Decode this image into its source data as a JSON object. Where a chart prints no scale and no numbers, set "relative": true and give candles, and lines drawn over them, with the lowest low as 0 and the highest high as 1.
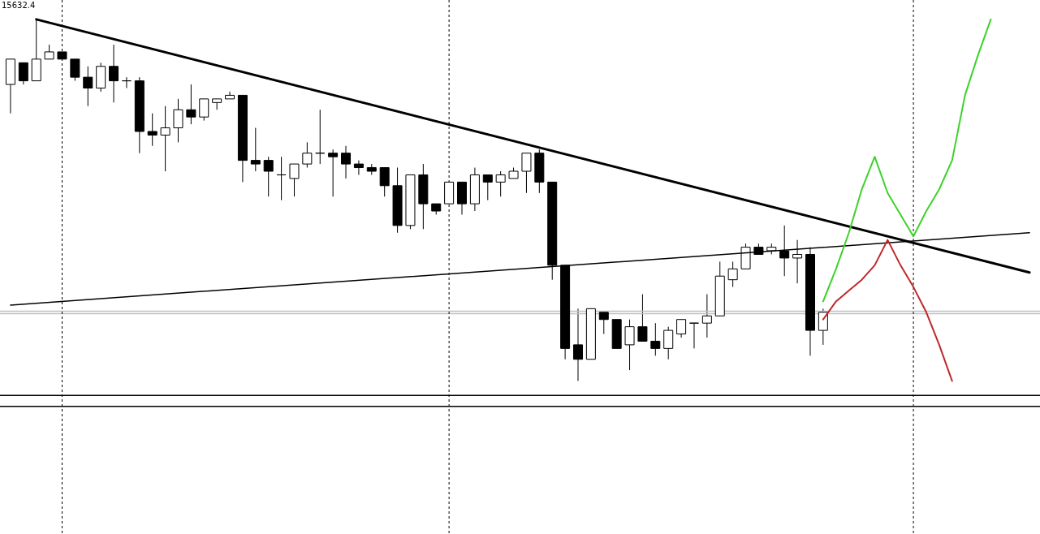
{
  "chart_data": {
    "type": "candlestick",
    "relative": true,
    "tick_labels": false,
    "grid": "x",
    "categories": [
      null,
      null,
      null,
      null,
      null,
      null,
      null,
      null,
      null,
      null,
      null,
      null,
      null,
      null,
      null,
      null,
      null,
      null,
      null,
      null,
      null,
      null,
      null,
      null,
      null,
      null,
      null,
      null,
      null,
      null,
      null,
      null,
      null,
      null,
      null,
      null,
      null,
      null,
      null,
      null,
      null,
      null,
      null,
      null,
      null,
      null,
      null,
      null,
      null,
      null,
      null,
      null,
      null,
      null,
      null,
      null,
      null,
      null,
      null,
      null,
      null,
      null,
      null,
      null,
      null,
      null,
      null,
      null,
      null,
      null,
      null,
      null,
      null,
      null,
      null,
      null,
      null,
      null,
      null,
      null
    ],
    "ohlc": [
      [
        0.82,
        0.89,
        0.74,
        0.89
      ],
      [
        0.88,
        0.88,
        0.82,
        0.83
      ],
      [
        0.83,
        1.0,
        0.83,
        0.89
      ],
      [
        0.89,
        0.93,
        0.89,
        0.91
      ],
      [
        0.91,
        0.91,
        0.89,
        0.89
      ],
      [
        0.89,
        0.89,
        0.83,
        0.84
      ],
      [
        0.84,
        0.87,
        0.76,
        0.81
      ],
      [
        0.81,
        0.88,
        0.8,
        0.87
      ],
      [
        0.87,
        0.93,
        0.77,
        0.83
      ],
      [
        0.83,
        0.84,
        0.81,
        0.83
      ],
      [
        0.83,
        0.84,
        0.63,
        0.69
      ],
      [
        0.69,
        0.74,
        0.65,
        0.68
      ],
      [
        0.68,
        0.76,
        0.58,
        0.7
      ],
      [
        0.7,
        0.78,
        0.66,
        0.75
      ],
      [
        0.75,
        0.82,
        0.71,
        0.73
      ],
      [
        0.73,
        0.78,
        0.72,
        0.78
      ],
      [
        0.77,
        0.78,
        0.75,
        0.78
      ],
      [
        0.78,
        0.8,
        0.78,
        0.79
      ],
      [
        0.79,
        0.79,
        0.55,
        0.61
      ],
      [
        0.61,
        0.7,
        0.58,
        0.6
      ],
      [
        0.61,
        0.62,
        0.51,
        0.58
      ],
      [
        0.57,
        0.62,
        0.5,
        0.57
      ],
      [
        0.56,
        0.6,
        0.51,
        0.6
      ],
      [
        0.6,
        0.66,
        0.59,
        0.63
      ],
      [
        0.63,
        0.75,
        0.6,
        0.63
      ],
      [
        0.63,
        0.64,
        0.51,
        0.62
      ],
      [
        0.63,
        0.65,
        0.56,
        0.6
      ],
      [
        0.6,
        0.61,
        0.57,
        0.59
      ],
      [
        0.59,
        0.6,
        0.57,
        0.58
      ],
      [
        0.59,
        0.59,
        0.51,
        0.54
      ],
      [
        0.54,
        0.59,
        0.41,
        0.43
      ],
      [
        0.43,
        0.57,
        0.42,
        0.57
      ],
      [
        0.57,
        0.6,
        0.42,
        0.49
      ],
      [
        0.49,
        0.49,
        0.46,
        0.47
      ],
      [
        0.49,
        0.55,
        0.49,
        0.55
      ],
      [
        0.55,
        0.55,
        0.46,
        0.49
      ],
      [
        0.49,
        0.59,
        0.47,
        0.57
      ],
      [
        0.57,
        0.57,
        0.5,
        0.55
      ],
      [
        0.55,
        0.58,
        0.51,
        0.57
      ],
      [
        0.56,
        0.59,
        0.56,
        0.58
      ],
      [
        0.58,
        0.63,
        0.52,
        0.63
      ],
      [
        0.63,
        0.64,
        0.52,
        0.55
      ],
      [
        0.55,
        0.55,
        0.28,
        0.32
      ],
      [
        0.32,
        0.32,
        0.06,
        0.09
      ],
      [
        0.1,
        0.2,
        0.0,
        0.06
      ],
      [
        0.06,
        0.2,
        0.06,
        0.2
      ],
      [
        0.19,
        0.19,
        0.13,
        0.17
      ],
      [
        0.17,
        0.17,
        0.09,
        0.09
      ],
      [
        0.1,
        0.17,
        0.03,
        0.15
      ],
      [
        0.15,
        0.24,
        0.11,
        0.11
      ],
      [
        0.11,
        0.16,
        0.07,
        0.09
      ],
      [
        0.09,
        0.15,
        0.06,
        0.14
      ],
      [
        0.13,
        0.17,
        0.12,
        0.17
      ],
      [
        0.16,
        0.16,
        0.09,
        0.16
      ],
      [
        0.16,
        0.24,
        0.12,
        0.18
      ],
      [
        0.18,
        0.33,
        0.18,
        0.29
      ],
      [
        0.28,
        0.33,
        0.26,
        0.31
      ],
      [
        0.31,
        0.38,
        0.31,
        0.37
      ],
      [
        0.37,
        0.38,
        0.35,
        0.35
      ],
      [
        0.36,
        0.38,
        0.35,
        0.37
      ],
      [
        0.36,
        0.43,
        0.29,
        0.34
      ],
      [
        0.34,
        0.39,
        0.27,
        0.35
      ],
      [
        0.35,
        0.37,
        0.07,
        0.14
      ],
      [
        0.14,
        0.2,
        0.1,
        0.19
      ],
      null,
      null,
      null,
      null,
      null,
      null,
      null,
      null,
      null,
      null,
      null,
      null,
      null,
      null,
      null,
      null
    ],
    "colors": [
      "#ffffff",
      "#000000",
      "#ffffff",
      "#ffffff",
      "#000000",
      "#000000",
      "#000000",
      "#ffffff",
      "#000000",
      "#000000",
      "#000000",
      "#000000",
      "#ffffff",
      "#ffffff",
      "#000000",
      "#ffffff",
      "#ffffff",
      "#ffffff",
      "#000000",
      "#000000",
      "#000000",
      "#000000",
      "#ffffff",
      "#ffffff",
      "#000000",
      "#000000",
      "#000000",
      "#000000",
      "#000000",
      "#000000",
      "#000000",
      "#ffffff",
      "#000000",
      "#000000",
      "#ffffff",
      "#000000",
      "#ffffff",
      "#000000",
      "#ffffff",
      "#ffffff",
      "#ffffff",
      "#000000",
      "#000000",
      "#000000",
      "#000000",
      "#ffffff",
      "#000000",
      "#000000",
      "#ffffff",
      "#000000",
      "#000000",
      "#ffffff",
      "#ffffff",
      "#000000",
      "#ffffff",
      "#ffffff",
      "#ffffff",
      "#ffffff",
      "#000000",
      "#ffffff",
      "#000000",
      "#ffffff",
      "#000000",
      "#ffffff",
      null,
      null,
      null,
      null,
      null,
      null,
      null,
      null,
      null,
      null,
      null,
      null,
      null,
      null,
      null,
      null
    ],
    "series": [
      {
        "type": "line",
        "color": "#000000",
        "values": [
          null,
          null,
          1.0,
          null,
          null,
          null,
          null,
          null,
          null,
          null,
          null,
          null,
          null,
          null,
          null,
          null,
          null,
          null,
          null,
          null,
          null,
          null,
          null,
          null,
          null,
          null,
          null,
          null,
          null,
          null,
          null,
          null,
          null,
          null,
          null,
          null,
          null,
          null,
          null,
          null,
          null,
          null,
          null,
          null,
          null,
          null,
          null,
          null,
          null,
          null,
          null,
          null,
          null,
          null,
          null,
          null,
          null,
          null,
          null,
          null,
          null,
          null,
          null,
          null,
          null,
          null,
          null,
          null,
          null,
          null,
          null,
          null,
          null,
          null,
          null,
          null,
          null,
          null,
          null,
          0.3
        ]
      },
      {
        "type": "line",
        "color": "#000000",
        "values": [
          0.21,
          null,
          null,
          null,
          null,
          null,
          null,
          null,
          null,
          null,
          null,
          null,
          null,
          null,
          null,
          null,
          null,
          null,
          null,
          null,
          null,
          null,
          null,
          null,
          null,
          null,
          null,
          null,
          null,
          null,
          null,
          null,
          null,
          null,
          null,
          null,
          null,
          null,
          null,
          null,
          null,
          null,
          null,
          null,
          null,
          null,
          null,
          null,
          null,
          null,
          null,
          null,
          null,
          null,
          null,
          null,
          null,
          null,
          null,
          null,
          null,
          null,
          null,
          null,
          null,
          null,
          null,
          null,
          null,
          null,
          null,
          null,
          null,
          null,
          null,
          null,
          null,
          null,
          null,
          0.41
        ]
      },
      {
        "type": "line",
        "color": "#3cd22a",
        "values": [
          null,
          null,
          null,
          null,
          null,
          null,
          null,
          null,
          null,
          null,
          null,
          null,
          null,
          null,
          null,
          null,
          null,
          null,
          null,
          null,
          null,
          null,
          null,
          null,
          null,
          null,
          null,
          null,
          null,
          null,
          null,
          null,
          null,
          null,
          null,
          null,
          null,
          null,
          null,
          null,
          null,
          null,
          null,
          null,
          null,
          null,
          null,
          null,
          null,
          null,
          null,
          null,
          null,
          null,
          null,
          null,
          null,
          null,
          null,
          null,
          null,
          null,
          null,
          0.22,
          0.31,
          0.41,
          0.53,
          0.62,
          0.52,
          0.46,
          0.4,
          0.47,
          0.53,
          0.61,
          0.79,
          0.9,
          1.0,
          null,
          null,
          null
        ]
      },
      {
        "type": "line",
        "color": "#c0282a",
        "values": [
          null,
          null,
          null,
          null,
          null,
          null,
          null,
          null,
          null,
          null,
          null,
          null,
          null,
          null,
          null,
          null,
          null,
          null,
          null,
          null,
          null,
          null,
          null,
          null,
          null,
          null,
          null,
          null,
          null,
          null,
          null,
          null,
          null,
          null,
          null,
          null,
          null,
          null,
          null,
          null,
          null,
          null,
          null,
          null,
          null,
          null,
          null,
          null,
          null,
          null,
          null,
          null,
          null,
          null,
          null,
          null,
          null,
          null,
          null,
          null,
          null,
          null,
          null,
          0.17,
          0.22,
          0.25,
          0.28,
          0.32,
          0.39,
          0.32,
          0.26,
          0.19,
          0.1,
          0.0,
          null,
          null,
          null,
          null,
          null,
          null
        ]
      }
    ],
    "ref_lines": [
      {
        "axis": "y",
        "value": -0.04,
        "color": "#000000",
        "line_style": "solid"
      },
      {
        "axis": "y",
        "value": -0.07,
        "color": "#000000",
        "line_style": "solid"
      },
      {
        "axis": "y",
        "value": 0.193,
        "color": "#c0c0c0",
        "line_style": "solid"
      },
      {
        "axis": "y",
        "value": 0.186,
        "color": "#c0c0c0",
        "line_style": "solid"
      }
    ],
    "annotations": [
      "15632.4"
    ]
  }
}
